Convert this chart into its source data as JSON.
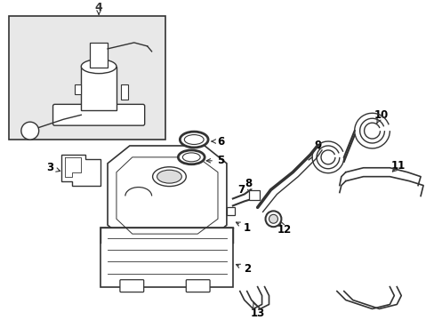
{
  "bg_color": "#ffffff",
  "line_color": "#333333",
  "label_color": "#000000",
  "inset_bg": "#e8e8e8",
  "figsize": [
    4.89,
    3.6
  ],
  "dpi": 100
}
